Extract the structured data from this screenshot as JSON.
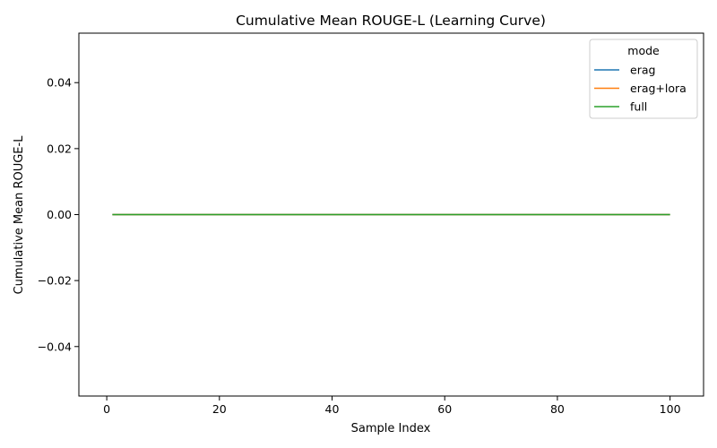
{
  "chart_data": {
    "type": "line",
    "title": "Cumulative Mean ROUGE-L (Learning Curve)",
    "xlabel": "Sample Index",
    "ylabel": "Cumulative Mean ROUGE-L",
    "xlim": [
      -4.95,
      105.95
    ],
    "ylim": [
      -0.055,
      0.055
    ],
    "xticks": [
      0,
      20,
      40,
      60,
      80,
      100
    ],
    "xtick_labels": [
      "0",
      "20",
      "40",
      "60",
      "80",
      "100"
    ],
    "yticks": [
      -0.04,
      -0.02,
      0.0,
      0.02,
      0.04
    ],
    "ytick_labels": [
      "−0.04",
      "−0.02",
      "0.00",
      "0.02",
      "0.04"
    ],
    "grid": false,
    "legend": {
      "title": "mode",
      "placement": "top-right"
    },
    "series": [
      {
        "name": "erag",
        "color": "#1f77b4",
        "x": [
          1,
          100
        ],
        "y": [
          0.0,
          0.0
        ]
      },
      {
        "name": "erag+lora",
        "color": "#ff7f0e",
        "x": [
          1,
          100
        ],
        "y": [
          0.0,
          0.0
        ]
      },
      {
        "name": "full",
        "color": "#2ca02c",
        "x": [
          1,
          100
        ],
        "y": [
          0.0,
          0.0
        ]
      }
    ]
  }
}
